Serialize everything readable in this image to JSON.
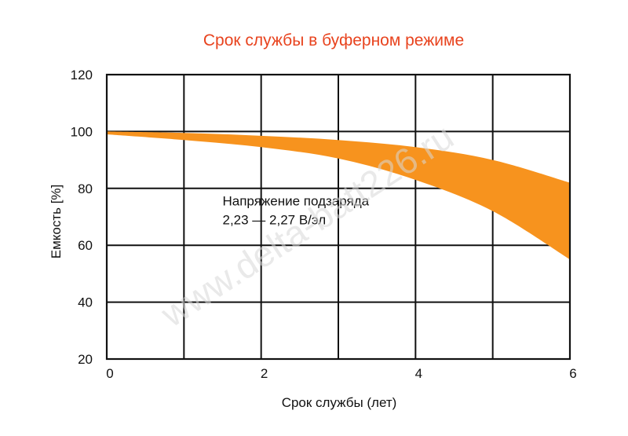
{
  "chart_data": {
    "type": "area",
    "title": "Срок службы в буферном режиме",
    "xlabel": "Срок службы (лет)",
    "ylabel": "Емкость [%]",
    "xlim": [
      0,
      6
    ],
    "ylim": [
      20,
      120
    ],
    "x_ticks": [
      "0",
      "2",
      "4",
      "6"
    ],
    "y_ticks": [
      "20",
      "40",
      "60",
      "80",
      "100",
      "120"
    ],
    "grid": true,
    "legend": "none",
    "annotation": {
      "lines": [
        "Напряжение подзаряда",
        "2,23 — 2,27 В/эл"
      ],
      "x": 1.5,
      "y_top": 74
    },
    "series": [
      {
        "type": "band",
        "color": "#f7931e",
        "x": [
          0,
          1,
          2,
          3,
          4,
          5,
          6
        ],
        "upper": [
          100,
          99.5,
          98.5,
          97,
          94.5,
          90,
          82
        ],
        "lower": [
          99,
          97,
          94.5,
          90.5,
          83,
          72,
          55
        ]
      }
    ],
    "watermark": "www.delta-batt226.ru",
    "colors": {
      "title": "#e8431e",
      "band": "#f7931e",
      "axis": "#111111",
      "grid": "#111111",
      "watermark": "#d8d8d8"
    }
  }
}
